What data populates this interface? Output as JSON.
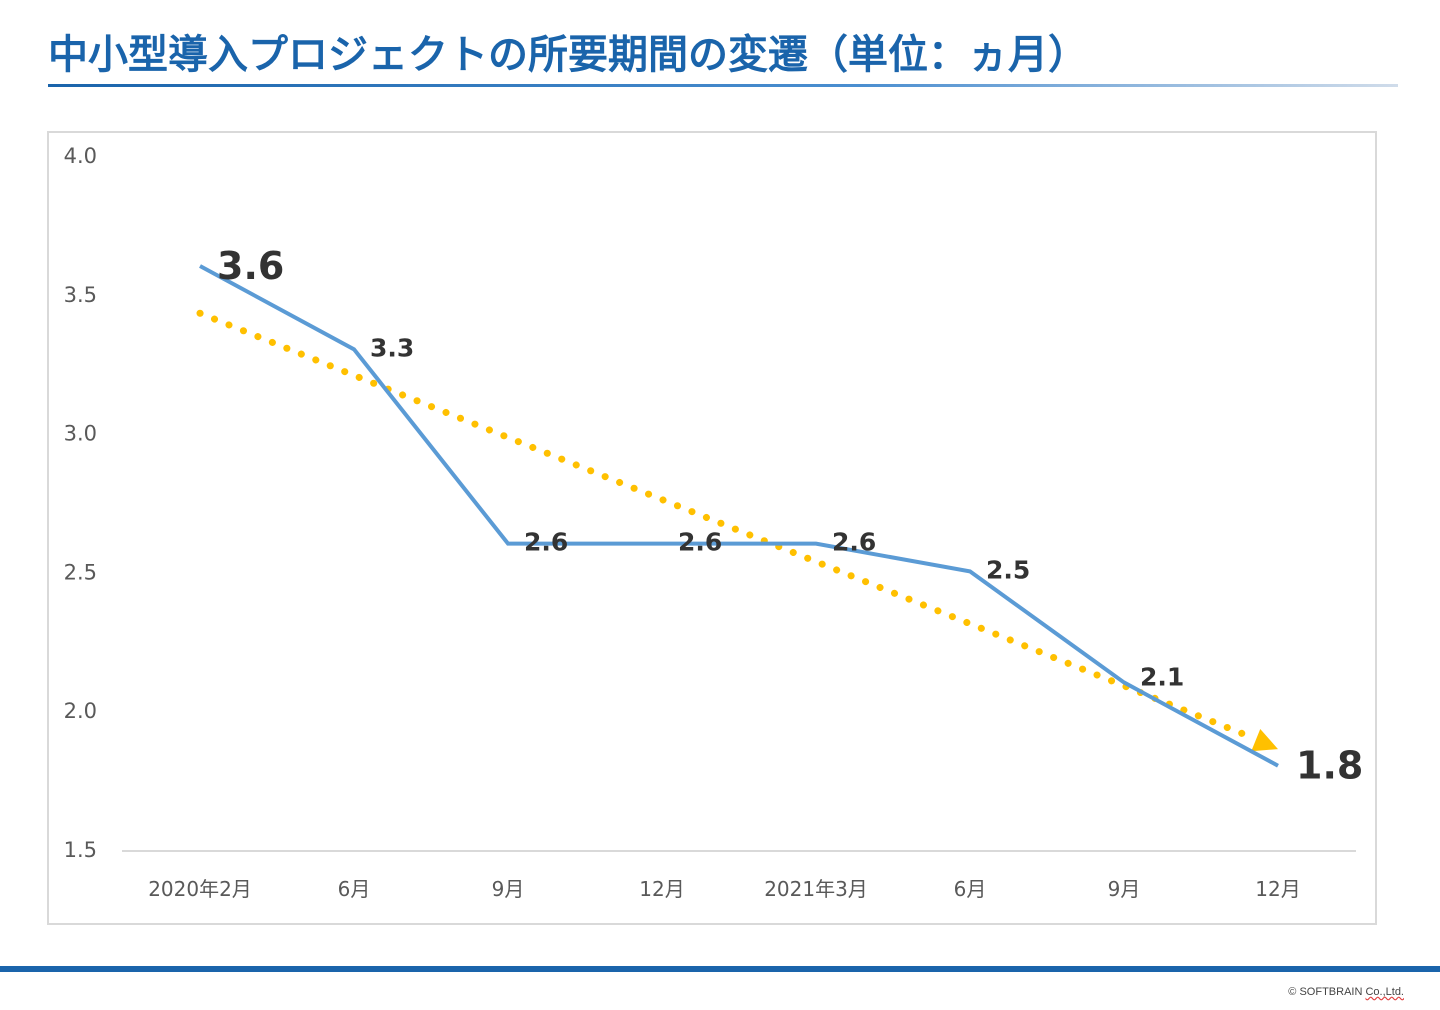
{
  "title": "中小型導入プロジェクトの所要期間の変遷（単位：ヵ月）",
  "footer": {
    "copyright_prefix": "© SOFTBRAIN ",
    "copyright_company": "Co.,Ltd."
  },
  "colors": {
    "title": "#1a64ab",
    "series_line": "#5b9bd5",
    "trend_line": "#ffc000",
    "label_text": "#333333",
    "axis_text": "#595959",
    "grid": "#d9d9d9"
  },
  "chart_data": {
    "type": "line",
    "title": "中小型導入プロジェクトの所要期間の変遷（単位：ヵ月）",
    "xlabel": "",
    "ylabel": "",
    "ylim": [
      1.5,
      4.0
    ],
    "yticks": [
      "4.0",
      "3.5",
      "3.0",
      "2.5",
      "2.0",
      "1.5"
    ],
    "ytick_values": [
      4.0,
      3.5,
      3.0,
      2.5,
      2.0,
      1.5
    ],
    "categories": [
      "2020年2月",
      "6月",
      "9月",
      "12月",
      "2021年3月",
      "6月",
      "9月",
      "12月"
    ],
    "grid": false,
    "legend": "none",
    "series": [
      {
        "name": "所要期間",
        "values": [
          3.6,
          3.3,
          2.6,
          2.6,
          2.6,
          2.5,
          2.1,
          1.8
        ],
        "labels": [
          "3.6",
          "3.3",
          "2.6",
          "2.6",
          "2.6",
          "2.5",
          "2.1",
          "1.8"
        ]
      }
    ],
    "trendline": {
      "type": "linear",
      "style": "dotted-arrow",
      "start": 3.43,
      "end": 1.86
    }
  }
}
